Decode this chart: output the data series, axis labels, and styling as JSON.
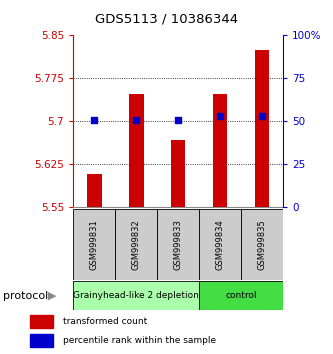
{
  "title": "GDS5113 / 10386344",
  "samples": [
    "GSM999831",
    "GSM999832",
    "GSM999833",
    "GSM999834",
    "GSM999835"
  ],
  "red_values": [
    5.607,
    5.748,
    5.668,
    5.748,
    5.825
  ],
  "blue_values": [
    51,
    51,
    51,
    53,
    53
  ],
  "ymin": 5.55,
  "ymax": 5.85,
  "y2min": 0,
  "y2max": 100,
  "yticks": [
    5.55,
    5.625,
    5.7,
    5.775,
    5.85
  ],
  "y2ticks": [
    0,
    25,
    50,
    75,
    100
  ],
  "bar_color": "#cc0000",
  "dot_color": "#0000cc",
  "bar_bottom": 5.55,
  "groups": [
    {
      "label": "Grainyhead-like 2 depletion",
      "start": 0,
      "end": 3,
      "color": "#aaffaa"
    },
    {
      "label": "control",
      "start": 3,
      "end": 5,
      "color": "#44dd44"
    }
  ],
  "protocol_label": "protocol",
  "legend_red": "transformed count",
  "legend_blue": "percentile rank within the sample",
  "tick_label_color_left": "#cc0000",
  "tick_label_color_right": "#0000cc",
  "bar_width": 0.35,
  "dot_size": 18,
  "sample_box_color": "#cccccc",
  "bg_color": "#ffffff"
}
